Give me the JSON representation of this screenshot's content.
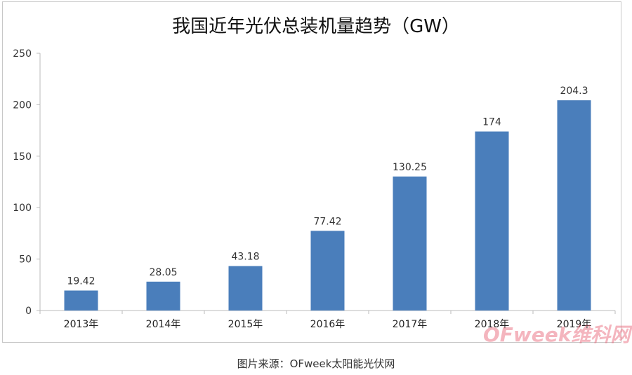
{
  "chart_data": {
    "type": "bar",
    "title": "我国近年光伏总装机量趋势（GW）",
    "categories": [
      "2013年",
      "2014年",
      "2015年",
      "2016年",
      "2017年",
      "2018年",
      "2019年"
    ],
    "values": [
      19.42,
      28.05,
      43.18,
      77.42,
      130.25,
      174,
      204.3
    ],
    "value_labels": [
      "19.42",
      "28.05",
      "43.18",
      "77.42",
      "130.25",
      "174",
      "204.3"
    ],
    "yticks": [
      0,
      50,
      100,
      150,
      200,
      250
    ],
    "ylim": [
      0,
      250
    ],
    "xlabel": "",
    "ylabel": "",
    "grid": false,
    "bar_color": "#4a7ebb"
  },
  "caption": "图片来源：OFweek太阳能光伏网",
  "watermark": "OFweek维科网"
}
